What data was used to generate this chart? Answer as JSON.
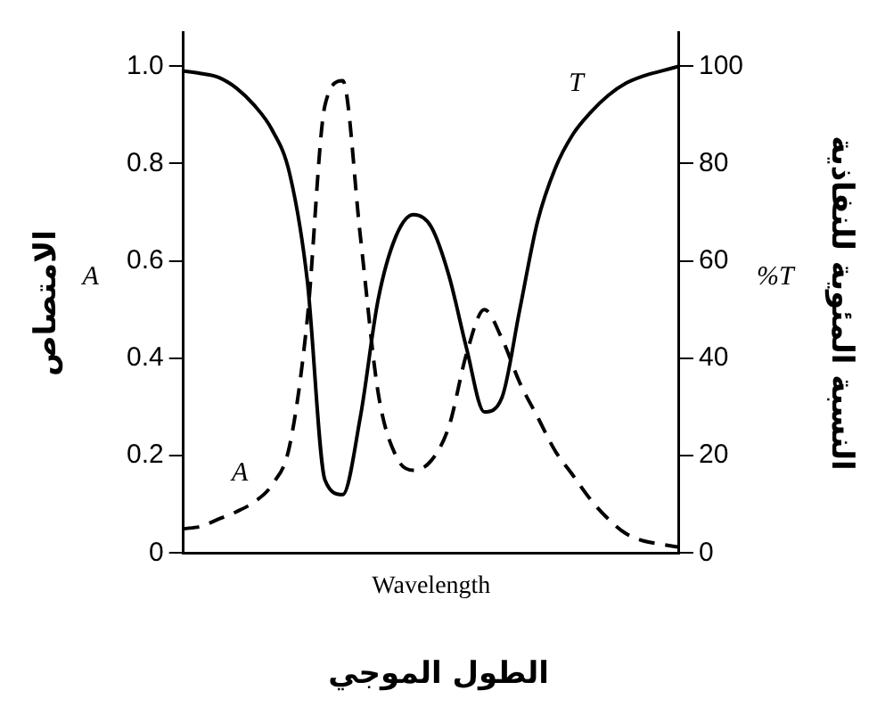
{
  "chart_data": {
    "type": "line",
    "xlabel": "Wavelength",
    "ylabel": "A",
    "y2label": "%T",
    "annotations": [
      "الامتصاص",
      "النسبة المئوية للنفاذية",
      "الطول الموجي"
    ],
    "categories": [
      null,
      null,
      null,
      null,
      null,
      null,
      null,
      null,
      null,
      null,
      null,
      null,
      null,
      null,
      null,
      null,
      null,
      null,
      null,
      null,
      null,
      null,
      null,
      null,
      null,
      null,
      null,
      null,
      null
    ],
    "series": [
      {
        "name": "A",
        "color": "#000000",
        "line_style": "dashed",
        "axis": "y",
        "values": [
          0.05,
          0.055,
          0.07,
          0.085,
          0.105,
          0.14,
          0.22,
          0.48,
          0.92,
          0.97,
          0.65,
          0.33,
          0.2,
          0.17,
          0.19,
          0.26,
          0.41,
          0.5,
          0.44,
          0.35,
          0.28,
          0.21,
          0.16,
          0.11,
          0.07,
          0.04,
          0.025,
          0.018,
          0.012
        ]
      },
      {
        "name": "T",
        "color": "#000000",
        "line_style": "solid",
        "axis": "y2",
        "values": [
          99,
          98.5,
          97.7,
          95.5,
          92,
          87,
          78,
          56,
          15,
          12,
          28,
          52,
          65,
          69.5,
          67,
          57,
          42,
          29,
          32,
          50,
          68,
          79,
          86,
          90.5,
          94,
          96.5,
          98,
          99,
          100
        ]
      }
    ],
    "ylim": [
      0,
      1.07
    ],
    "yticks": [
      0,
      0.2,
      0.4,
      0.6,
      0.8,
      {
        "value": 1,
        "label": "1.0"
      }
    ],
    "y2lim": [
      0,
      107
    ],
    "y2ticks": [
      0,
      20,
      40,
      60,
      80,
      100
    ],
    "grid": false,
    "legend": false,
    "marker": "none"
  }
}
